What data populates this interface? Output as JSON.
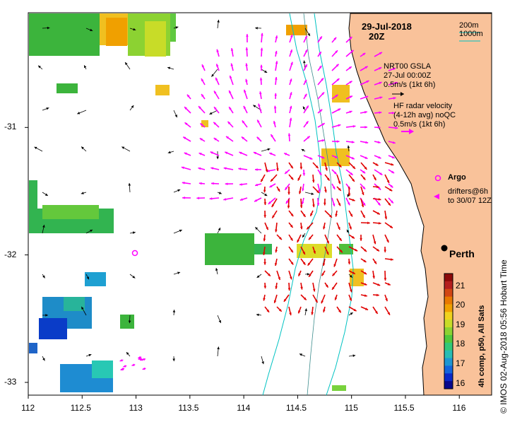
{
  "title": {
    "date": "29-Jul-2018",
    "time": "20Z"
  },
  "legend": {
    "bathy_200": "200m",
    "bathy_1000": "1000m",
    "gsla_title": "NRT00 GSLA",
    "gsla_date": "27-Jul 00:00Z",
    "gsla_scale": "0.5m/s (1kt 6h)",
    "hf_title": "HF radar velocity",
    "hf_avg": "(4-12h avg) noQC",
    "hf_scale": "0.5m/s (1kt 6h)",
    "argo": "Argo",
    "drifters_1": "drifters@6h",
    "drifters_2": "to 30/07 12Z"
  },
  "city": {
    "name": "Perth"
  },
  "colorbar": {
    "title": "4h comp, p50, All Sats",
    "ticks": [
      "16",
      "17",
      "18",
      "19",
      "20",
      "21"
    ],
    "range": [
      15.7,
      21.6
    ]
  },
  "credit": "© IMOS 02-Aug-2018 05:56 Hobart Time",
  "axes": {
    "x_ticks": [
      "112",
      "112.5",
      "113",
      "113.5",
      "114",
      "114.5",
      "115",
      "115.5",
      "116"
    ],
    "y_ticks": [
      "-31",
      "-32",
      "-33"
    ],
    "x_range": [
      112,
      116.3
    ],
    "y_range": [
      -33.1,
      -30.1
    ]
  },
  "colors": {
    "land": "#f9c29a",
    "bathy_200": "#00c2c2",
    "bathy_1000": "#00c2c2",
    "gsla_arrows": "#000000",
    "hf_arrows_old": "#ff00ff",
    "hf_arrows_new": "#e00000",
    "argo": "#ff00ff"
  }
}
